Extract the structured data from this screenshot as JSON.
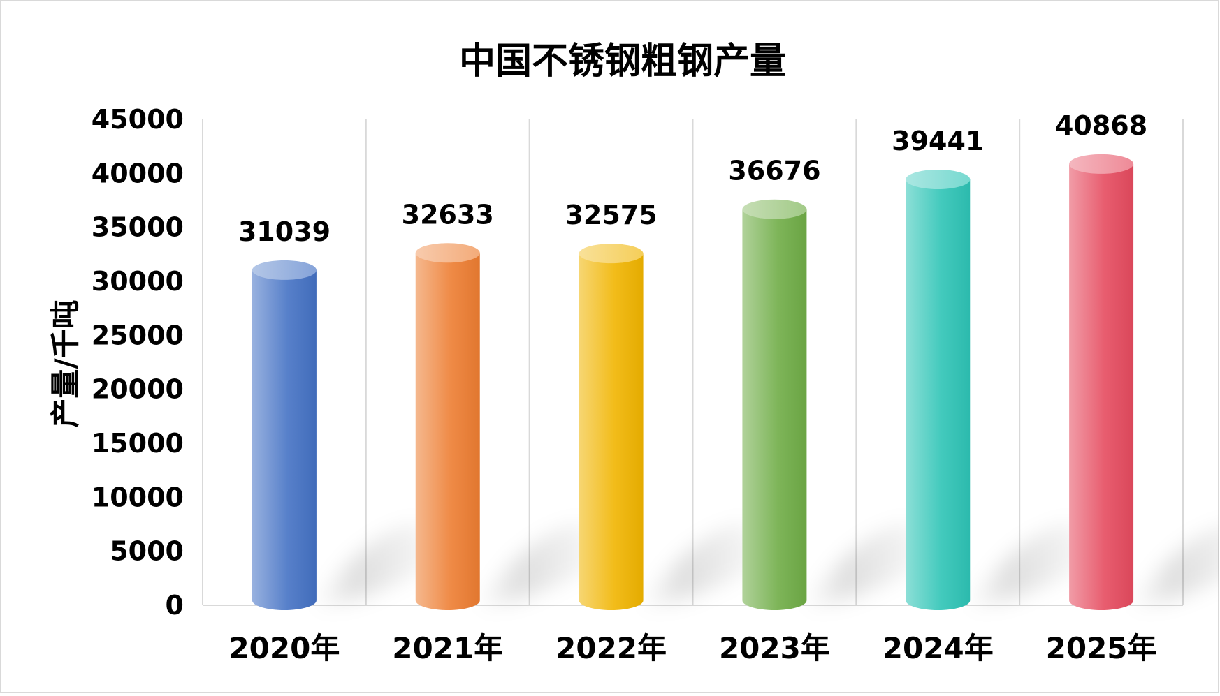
{
  "chart_data": {
    "type": "bar",
    "title": "中国不锈钢粗钢产量",
    "xlabel": "",
    "ylabel": "产量/千吨",
    "categories": [
      "2020年",
      "2021年",
      "2022年",
      "2023年",
      "2024年",
      "2025年"
    ],
    "values": [
      31039,
      32633,
      32575,
      36676,
      39441,
      40868
    ],
    "value_labels": [
      "31039",
      "32633",
      "32575",
      "36676",
      "39441",
      "40868"
    ],
    "yticks": [
      "0",
      "5000",
      "10000",
      "15000",
      "20000",
      "25000",
      "30000",
      "35000",
      "40000",
      "45000"
    ],
    "ylim": [
      0,
      45000
    ],
    "bar_style": "3d-cylinder",
    "colors": [
      "#4472c4",
      "#ed7d31",
      "#f0b400",
      "#70ad47",
      "#2ec4b6",
      "#e54b5f"
    ],
    "grid": "vertical category separators",
    "legend": "none"
  }
}
